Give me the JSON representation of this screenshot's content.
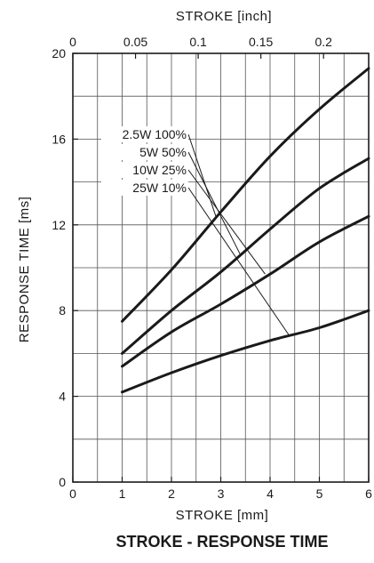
{
  "chart_data": {
    "type": "line",
    "title": "STROKE - RESPONSE TIME",
    "xlabel": "STROKE [mm]",
    "x2label": "STROKE [inch]",
    "ylabel": "RESPONSE TIME [ms]",
    "xlim": [
      0,
      6
    ],
    "ylim": [
      0,
      20
    ],
    "x2lim": [
      0,
      0.236
    ],
    "x_ticks": [
      0,
      1,
      2,
      3,
      4,
      5,
      6
    ],
    "y_ticks": [
      0,
      4,
      8,
      12,
      16,
      20
    ],
    "x2_ticks": [
      0,
      0.05,
      0.1,
      0.15,
      0.2
    ],
    "x2_tick_labels": [
      "0",
      "0.05",
      "0.1",
      "0.15",
      "0.2"
    ],
    "grid": true,
    "legend_placement": "top-left",
    "series": [
      {
        "name": "2.5W 100%",
        "x": [
          1,
          2,
          3,
          4,
          5,
          6
        ],
        "values": [
          7.5,
          9.9,
          12.6,
          15.2,
          17.4,
          19.3
        ]
      },
      {
        "name": "5W 50%",
        "x": [
          1,
          2,
          3,
          4,
          5,
          6
        ],
        "values": [
          6.0,
          8.0,
          9.8,
          11.8,
          13.7,
          15.1
        ]
      },
      {
        "name": "10W 25%",
        "x": [
          1,
          2,
          3,
          4,
          5,
          6
        ],
        "values": [
          5.4,
          7.0,
          8.3,
          9.7,
          11.2,
          12.4
        ]
      },
      {
        "name": "25W 10%",
        "x": [
          1,
          2,
          3,
          4,
          5,
          6
        ],
        "values": [
          4.2,
          5.1,
          5.9,
          6.6,
          7.2,
          8.0
        ]
      }
    ],
    "leader_targets": [
      {
        "x": 2.9,
        "y": 12.4
      },
      {
        "x": 3.4,
        "y": 10.6
      },
      {
        "x": 3.9,
        "y": 9.7
      },
      {
        "x": 4.4,
        "y": 6.8
      }
    ]
  }
}
